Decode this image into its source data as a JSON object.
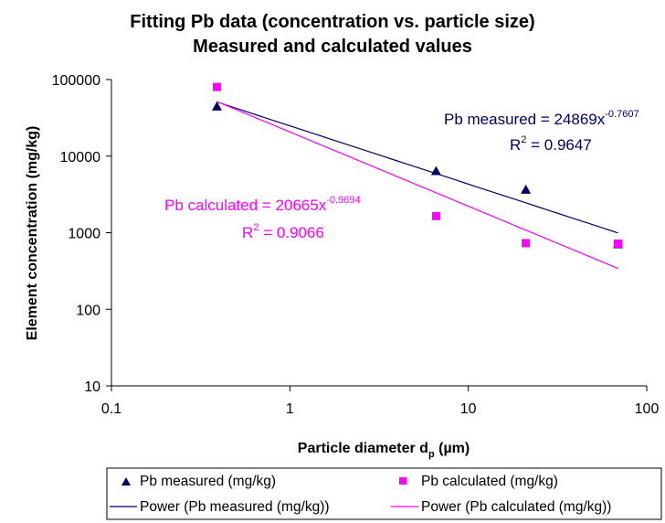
{
  "chart_data": {
    "type": "scatter",
    "title": "Fitting Pb data (concentration vs. particle size)",
    "subtitle": "Measured and calculated values",
    "xlabel": {
      "main": "Particle diameter d",
      "sub": "p",
      "unit": " (µm)"
    },
    "ylabel": "Element concentration (mg/kg)",
    "x_scale": "log",
    "y_scale": "log",
    "xlim": [
      0.1,
      100
    ],
    "ylim": [
      10,
      100000
    ],
    "x_ticks": [
      0.1,
      1,
      10,
      100
    ],
    "x_tick_labels": [
      "0.1",
      "1",
      "10",
      "100"
    ],
    "y_ticks": [
      10,
      100,
      1000,
      10000,
      100000
    ],
    "y_tick_labels": [
      "10",
      "100",
      "1000",
      "10000",
      "100000"
    ],
    "grid": false,
    "legend_position": "bottom",
    "series": [
      {
        "name": "Pb measured (mg/kg)",
        "kind": "points",
        "marker": "triangle",
        "color": "#000066",
        "x": [
          0.39,
          6.6,
          21,
          69
        ],
        "y": [
          44000,
          6300,
          3600,
          700
        ]
      },
      {
        "name": "Pb calculated (mg/kg)",
        "kind": "points",
        "marker": "square",
        "color": "#FF00FF",
        "x": [
          0.39,
          6.6,
          21,
          69
        ],
        "y": [
          80000,
          1650,
          730,
          720
        ]
      },
      {
        "name": "Power (Pb measured (mg/kg))",
        "kind": "trendline",
        "color": "#000066",
        "coefficient": 24869,
        "exponent": -0.7607,
        "x_range": [
          0.39,
          69
        ]
      },
      {
        "name": "Power (Pb calculated (mg/kg))",
        "kind": "trendline",
        "color": "#FF00FF",
        "coefficient": 20665,
        "exponent": -0.9694,
        "x_range": [
          0.39,
          69
        ]
      }
    ],
    "annotations": [
      {
        "series": "Pb measured (mg/kg)",
        "color": "#000066",
        "equation_text": "Pb measured = 24869x",
        "exponent_text": "-0.7607",
        "r2_label": "R",
        "r2_sup": "2",
        "r2_text": " = 0.9647"
      },
      {
        "series": "Pb calculated (mg/kg)",
        "color": "#FF00FF",
        "equation_text": "Pb calculated = 20665x",
        "exponent_text": "-0.9694",
        "r2_label": "R",
        "r2_sup": "2",
        "r2_text": " = 0.9066"
      }
    ]
  }
}
